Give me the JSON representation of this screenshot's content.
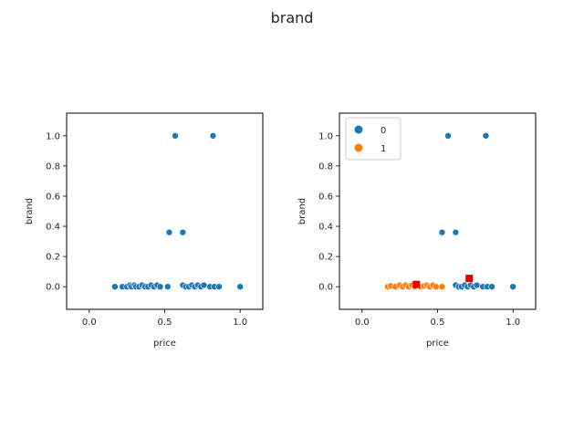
{
  "suptitle": "brand",
  "colors": {
    "class0": "#1f77b4",
    "class1": "#ff7f0e",
    "centroid": "#e00000"
  },
  "chart_data": [
    {
      "type": "scatter",
      "xlabel": "price",
      "ylabel": "brand",
      "xlim": [
        -0.15,
        1.15
      ],
      "ylim": [
        -0.15,
        1.15
      ],
      "xticks": [
        "0.0",
        "0.5",
        "1.0"
      ],
      "yticks": [
        "0.0",
        "0.2",
        "0.4",
        "0.6",
        "0.8",
        "1.0"
      ],
      "series": [
        {
          "points": [
            [
              0.17,
              0
            ],
            [
              0.22,
              0
            ],
            [
              0.25,
              0
            ],
            [
              0.27,
              0.01
            ],
            [
              0.28,
              0
            ],
            [
              0.3,
              0.01
            ],
            [
              0.31,
              0
            ],
            [
              0.33,
              0
            ],
            [
              0.35,
              0.01
            ],
            [
              0.37,
              0
            ],
            [
              0.39,
              0
            ],
            [
              0.41,
              0.01
            ],
            [
              0.43,
              0
            ],
            [
              0.45,
              0.01
            ],
            [
              0.47,
              0
            ],
            [
              0.52,
              0
            ],
            [
              0.62,
              0.01
            ],
            [
              0.64,
              0
            ],
            [
              0.66,
              0
            ],
            [
              0.68,
              0.01
            ],
            [
              0.7,
              0
            ],
            [
              0.72,
              0.01
            ],
            [
              0.74,
              0
            ],
            [
              0.76,
              0.01
            ],
            [
              0.8,
              0
            ],
            [
              0.83,
              0
            ],
            [
              0.86,
              0
            ],
            [
              1.0,
              0
            ],
            [
              0.53,
              0.36
            ],
            [
              0.62,
              0.36
            ],
            [
              0.57,
              1.0
            ],
            [
              0.82,
              1.0
            ]
          ]
        }
      ]
    },
    {
      "type": "scatter",
      "xlabel": "price",
      "ylabel": "brand",
      "xlim": [
        -0.15,
        1.15
      ],
      "ylim": [
        -0.15,
        1.15
      ],
      "xticks": [
        "0.0",
        "0.5",
        "1.0"
      ],
      "yticks": [
        "0.0",
        "0.2",
        "0.4",
        "0.6",
        "0.8",
        "1.0"
      ],
      "legend": {
        "placement": "top-left",
        "entries": [
          "0",
          "1"
        ]
      },
      "series": [
        {
          "name": "0",
          "points": [
            [
              0.62,
              0.01
            ],
            [
              0.64,
              0
            ],
            [
              0.66,
              0
            ],
            [
              0.68,
              0.01
            ],
            [
              0.7,
              0
            ],
            [
              0.72,
              0.01
            ],
            [
              0.74,
              0
            ],
            [
              0.76,
              0.01
            ],
            [
              0.8,
              0
            ],
            [
              0.83,
              0
            ],
            [
              0.86,
              0
            ],
            [
              1.0,
              0
            ],
            [
              0.53,
              0.36
            ],
            [
              0.62,
              0.36
            ],
            [
              0.57,
              1.0
            ],
            [
              0.82,
              1.0
            ]
          ]
        },
        {
          "name": "1",
          "points": [
            [
              0.17,
              0
            ],
            [
              0.19,
              0.005
            ],
            [
              0.22,
              0
            ],
            [
              0.25,
              0.01
            ],
            [
              0.27,
              0
            ],
            [
              0.29,
              0.01
            ],
            [
              0.31,
              0
            ],
            [
              0.33,
              0.01
            ],
            [
              0.35,
              0
            ],
            [
              0.37,
              0.01
            ],
            [
              0.39,
              0
            ],
            [
              0.41,
              0.005
            ],
            [
              0.43,
              0.01
            ],
            [
              0.45,
              0
            ],
            [
              0.47,
              0.01
            ],
            [
              0.49,
              0
            ],
            [
              0.53,
              0
            ]
          ]
        }
      ],
      "centroids": [
        [
          0.36,
          0.015
        ],
        [
          0.71,
          0.055
        ]
      ]
    }
  ]
}
